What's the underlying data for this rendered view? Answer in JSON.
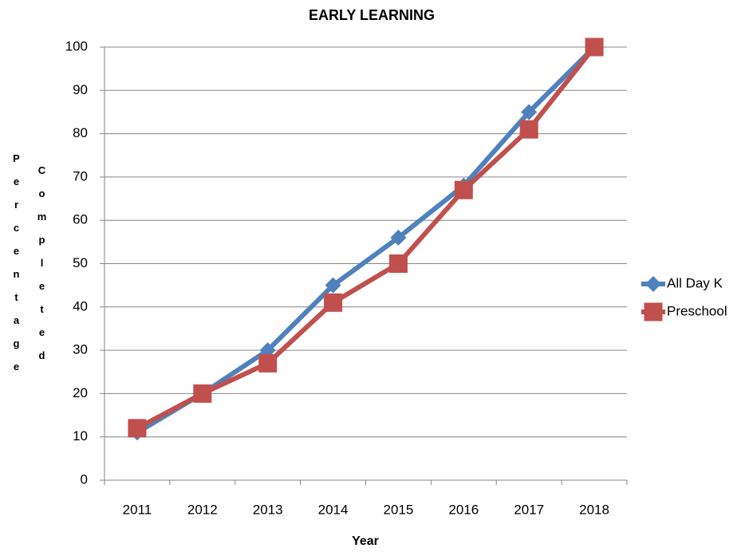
{
  "chart_data": {
    "type": "line",
    "title": "EARLY LEARNING",
    "x_label": "Year",
    "y_label": "Percentage Completed",
    "categories": [
      "2011",
      "2012",
      "2013",
      "2014",
      "2015",
      "2016",
      "2017",
      "2018"
    ],
    "series": [
      {
        "name": "All Day K",
        "color": "#4f81bd",
        "marker": "diamond",
        "values": [
          11,
          20,
          30,
          45,
          56,
          68,
          85,
          100
        ]
      },
      {
        "name": "Preschool",
        "color": "#c0504d",
        "marker": "square",
        "values": [
          12,
          20,
          27,
          41,
          50,
          67,
          81,
          100
        ]
      }
    ],
    "ylim": [
      0,
      100
    ],
    "yticks": [
      0,
      10,
      20,
      30,
      40,
      50,
      60,
      70,
      80,
      90,
      100
    ],
    "grid": true,
    "legend": "right"
  }
}
